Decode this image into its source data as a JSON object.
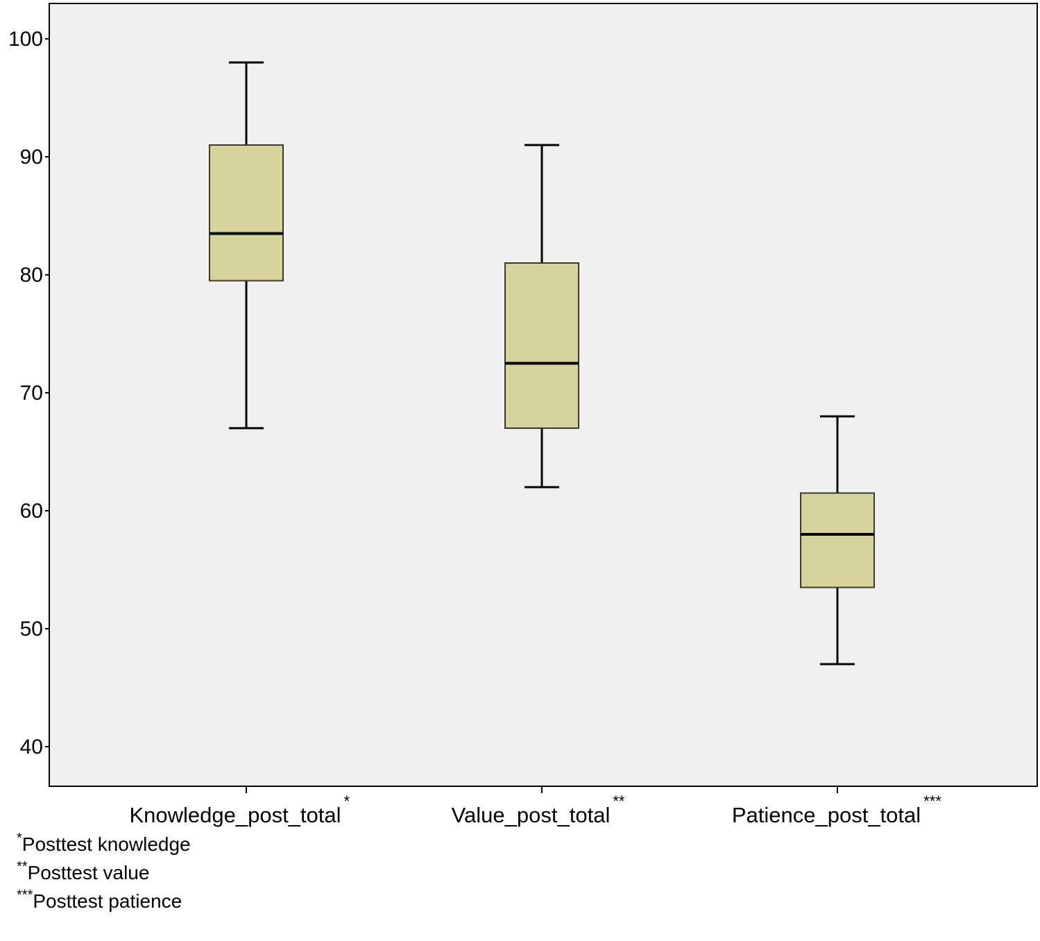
{
  "chart_data": {
    "type": "boxplot",
    "title": "",
    "xlabel": "",
    "ylabel": "",
    "y_ticks": [
      "40",
      "50",
      "60",
      "70",
      "80",
      "90",
      "100"
    ],
    "ylim": [
      36.6,
      103
    ],
    "grid": false,
    "categories": [
      "Knowledge_post_total",
      "Value_post_total",
      "Patience_post_total"
    ],
    "category_marks": [
      "*",
      "**",
      "***"
    ],
    "boxes": [
      {
        "label": "Knowledge_post_total",
        "min": 67,
        "q1": 79.5,
        "median": 83.5,
        "q3": 91,
        "max": 98
      },
      {
        "label": "Value_post_total",
        "min": 62,
        "q1": 67,
        "median": 72.5,
        "q3": 81,
        "max": 91
      },
      {
        "label": "Patience_post_total",
        "min": 47,
        "q1": 53.5,
        "median": 58,
        "q3": 61.5,
        "max": 68
      }
    ],
    "footnotes": [
      {
        "mark": "*",
        "text": "Posttest knowledge"
      },
      {
        "mark": "**",
        "text": "Posttest value"
      },
      {
        "mark": "***",
        "text": "Posttest patience"
      }
    ],
    "colors": {
      "box_fill": "#d8d39c",
      "box_stroke": "#3a3a2a",
      "plot_bg": "#f0f0f0",
      "line": "#000000"
    }
  }
}
